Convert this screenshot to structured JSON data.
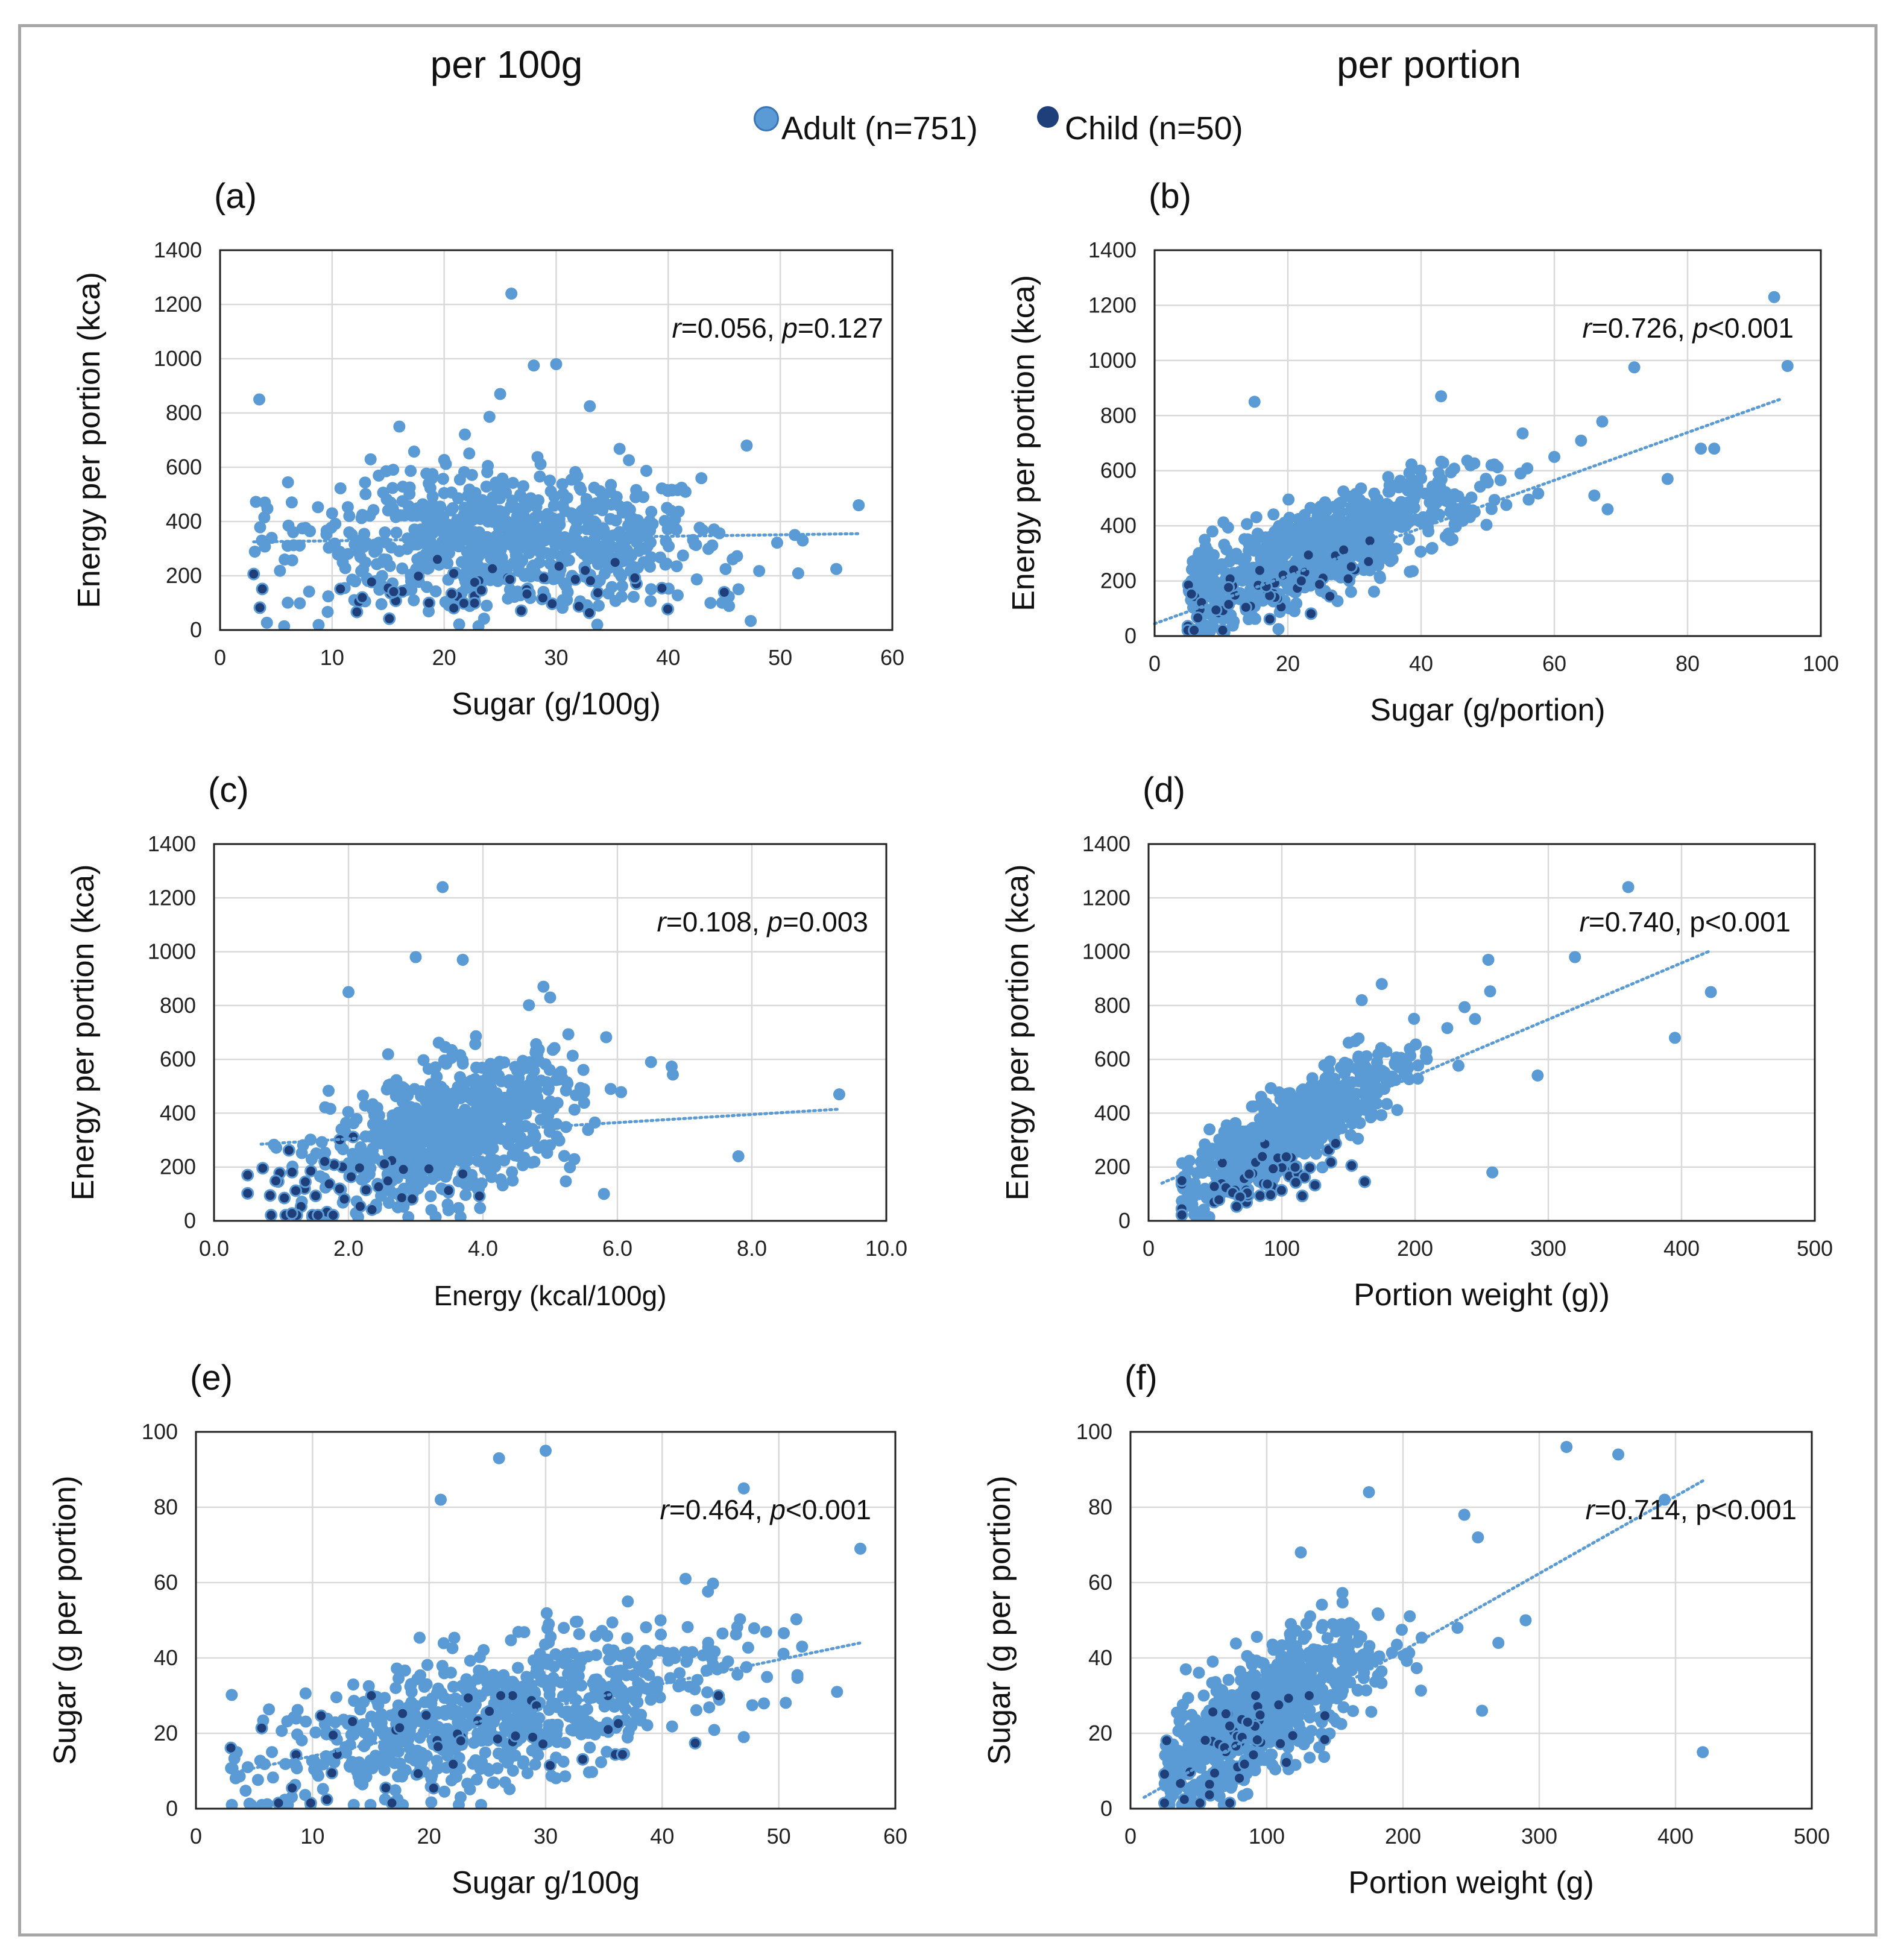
{
  "titles": {
    "left": "per 100g",
    "right": "per portion"
  },
  "legend": [
    {
      "label": "Adult (n=751)",
      "color": "#5b9bd5"
    },
    {
      "label": "Child (n=50)",
      "color": "#1f3f7a"
    }
  ],
  "chart_data": [
    {
      "id": "a",
      "panel_label": "(a)",
      "type": "scatter",
      "xlabel": "Sugar (g/100g)",
      "ylabel": "Energy per portion (kca)",
      "xlim": [
        0,
        60
      ],
      "ylim": [
        0,
        1400
      ],
      "xticks": [
        "0",
        "10",
        "20",
        "30",
        "40",
        "50",
        "60"
      ],
      "yticks": [
        "0",
        "200",
        "400",
        "600",
        "800",
        "1000",
        "1200",
        "1400"
      ],
      "annotation": {
        "r_label": "r",
        "r_value": "=0.056, ",
        "p_label": "p",
        "p_value": "=0.127"
      },
      "trendline": {
        "x": [
          3,
          57
        ],
        "y": [
          325,
          355
        ]
      },
      "adult_cloud": {
        "x_mean": 26,
        "x_sd": 9.5,
        "y_mean": 330,
        "y_sd": 120,
        "slope": 0.5,
        "n": 751
      },
      "adult_outliers": [
        [
          3.5,
          850
        ],
        [
          4,
          470
        ],
        [
          26,
          1240
        ],
        [
          28,
          975
        ],
        [
          30,
          980
        ],
        [
          25,
          870
        ],
        [
          33,
          825
        ],
        [
          47,
          680
        ],
        [
          57,
          460
        ],
        [
          55,
          225
        ],
        [
          52,
          330
        ],
        [
          16,
          750
        ]
      ],
      "child_cloud": {
        "x_mean": 22,
        "x_sd": 10,
        "y_mean": 120,
        "y_sd": 60,
        "slope": 0.5,
        "n": 50
      }
    },
    {
      "id": "b",
      "panel_label": "(b)",
      "type": "scatter",
      "xlabel": "Sugar (g/portion)",
      "ylabel": "Energy per portion (kca)",
      "xlim": [
        0,
        100
      ],
      "ylim": [
        0,
        1400
      ],
      "xticks": [
        "0",
        "20",
        "40",
        "60",
        "80",
        "100"
      ],
      "yticks": [
        "0",
        "200",
        "400",
        "600",
        "800",
        "1000",
        "1200",
        "1400"
      ],
      "annotation": {
        "r_label": "r",
        "r_value": "=0.726, ",
        "p_label": "p",
        "p_value": "<0.001"
      },
      "trendline": {
        "x": [
          0,
          94
        ],
        "y": [
          45,
          860
        ]
      },
      "adult_cloud": {
        "x_mean": 25,
        "x_sd": 12,
        "y_mean": 320,
        "y_sd": 80,
        "slope": 8.5,
        "n": 751
      },
      "adult_outliers": [
        [
          93,
          1230
        ],
        [
          95,
          980
        ],
        [
          72,
          975
        ],
        [
          15,
          850
        ],
        [
          84,
          680
        ],
        [
          82,
          680
        ],
        [
          77,
          570
        ],
        [
          68,
          460
        ],
        [
          66,
          510
        ],
        [
          60,
          650
        ],
        [
          43,
          870
        ]
      ],
      "child_cloud": {
        "x_mean": 14,
        "x_sd": 9,
        "y_mean": 130,
        "y_sd": 50,
        "slope": 8.5,
        "n": 50
      }
    },
    {
      "id": "c",
      "panel_label": "(c)",
      "type": "scatter",
      "xlabel": "Energy (kcal/100g)",
      "ylabel": "Energy per portion (kca)",
      "xlim": [
        0,
        10
      ],
      "ylim": [
        0,
        1400
      ],
      "xticks": [
        "0.0",
        "2.0",
        "4.0",
        "6.0",
        "8.0",
        "10.0"
      ],
      "yticks": [
        "0",
        "200",
        "400",
        "600",
        "800",
        "1000",
        "1200",
        "1400"
      ],
      "annotation": {
        "r_label": "r",
        "r_value": "=0.108, ",
        "p_label": "p",
        "p_value": "=0.003"
      },
      "trendline": {
        "x": [
          0.7,
          9.3
        ],
        "y": [
          285,
          415
        ]
      },
      "adult_cloud": {
        "x_mean": 3.6,
        "x_sd": 0.9,
        "y_mean": 340,
        "y_sd": 120,
        "slope": 60,
        "n": 751
      },
      "adult_outliers": [
        [
          3.4,
          1240
        ],
        [
          3.0,
          980
        ],
        [
          3.7,
          970
        ],
        [
          2.0,
          850
        ],
        [
          4.9,
          870
        ],
        [
          5.0,
          830
        ],
        [
          6.5,
          590
        ],
        [
          9.3,
          470
        ],
        [
          7.8,
          240
        ],
        [
          5.9,
          490
        ],
        [
          5.8,
          100
        ]
      ],
      "child_cloud": {
        "x_mean": 1.8,
        "x_sd": 0.9,
        "y_mean": 130,
        "y_sd": 70,
        "slope": 50,
        "n": 50
      }
    },
    {
      "id": "d",
      "panel_label": "(d)",
      "type": "scatter",
      "xlabel": "Portion weight (g))",
      "ylabel": "Energy per portion (kca)",
      "xlim": [
        0,
        500
      ],
      "ylim": [
        0,
        1400
      ],
      "xticks": [
        "0",
        "100",
        "200",
        "300",
        "400",
        "500"
      ],
      "yticks": [
        "0",
        "200",
        "400",
        "600",
        "800",
        "1000",
        "1200",
        "1400"
      ],
      "annotation": {
        "r_label": "r",
        "r_value": "=0.740, p<0.001",
        "p_label": "",
        "p_value": ""
      },
      "trendline": {
        "x": [
          10,
          420
        ],
        "y": [
          140,
          1000
        ]
      },
      "adult_cloud": {
        "x_mean": 105,
        "x_sd": 40,
        "y_mean": 340,
        "y_sd": 70,
        "slope": 2.8,
        "n": 751
      },
      "adult_outliers": [
        [
          360,
          1240
        ],
        [
          320,
          980
        ],
        [
          255,
          970
        ],
        [
          422,
          850
        ],
        [
          395,
          680
        ],
        [
          292,
          540
        ],
        [
          258,
          180
        ],
        [
          245,
          750
        ],
        [
          175,
          880
        ],
        [
          160,
          820
        ]
      ],
      "child_cloud": {
        "x_mean": 80,
        "x_sd": 35,
        "y_mean": 140,
        "y_sd": 60,
        "slope": 1.5,
        "n": 50
      }
    },
    {
      "id": "e",
      "panel_label": "(e)",
      "type": "scatter",
      "xlabel": "Sugar g/100g",
      "ylabel": "Sugar (g per portion)",
      "xlim": [
        0,
        60
      ],
      "ylim": [
        0,
        100
      ],
      "xticks": [
        "0",
        "10",
        "20",
        "30",
        "40",
        "50",
        "60"
      ],
      "yticks": [
        "0",
        "20",
        "40",
        "60",
        "80",
        "100"
      ],
      "annotation": {
        "r_label": "r",
        "r_value": "=0.464, ",
        "p_label": "p",
        "p_value": "<0.001"
      },
      "trendline": {
        "x": [
          3,
          57
        ],
        "y": [
          9.5,
          44
        ]
      },
      "adult_cloud": {
        "x_mean": 26,
        "x_sd": 9.5,
        "y_mean": 25,
        "y_sd": 9,
        "slope": 0.7,
        "n": 751
      },
      "adult_outliers": [
        [
          26,
          93
        ],
        [
          30,
          95
        ],
        [
          21,
          82
        ],
        [
          47,
          85
        ],
        [
          57,
          69
        ],
        [
          55,
          31
        ],
        [
          52,
          43
        ],
        [
          47,
          19
        ],
        [
          42,
          61
        ],
        [
          3.5,
          15
        ]
      ],
      "child_cloud": {
        "x_mean": 22,
        "x_sd": 9,
        "y_mean": 18,
        "y_sd": 7,
        "slope": 0.5,
        "n": 50
      }
    },
    {
      "id": "f",
      "panel_label": "(f)",
      "type": "scatter",
      "xlabel": "Portion weight (g)",
      "ylabel": "Sugar (g per portion)",
      "xlim": [
        0,
        500
      ],
      "ylim": [
        0,
        100
      ],
      "xticks": [
        "0",
        "100",
        "200",
        "300",
        "400",
        "500"
      ],
      "yticks": [
        "0",
        "20",
        "40",
        "60",
        "80",
        "100"
      ],
      "annotation": {
        "r_label": "r",
        "r_value": "=0.714, p<0.001",
        "p_label": "",
        "p_value": ""
      },
      "trendline": {
        "x": [
          10,
          420
        ],
        "y": [
          3,
          87
        ]
      },
      "adult_cloud": {
        "x_mean": 100,
        "x_sd": 40,
        "y_mean": 26,
        "y_sd": 8,
        "slope": 0.2,
        "n": 751
      },
      "adult_outliers": [
        [
          320,
          96
        ],
        [
          358,
          94
        ],
        [
          392,
          82
        ],
        [
          420,
          15
        ],
        [
          175,
          84
        ],
        [
          245,
          78
        ],
        [
          255,
          72
        ],
        [
          270,
          44
        ],
        [
          290,
          50
        ],
        [
          240,
          48
        ],
        [
          125,
          68
        ],
        [
          258,
          26
        ]
      ],
      "child_cloud": {
        "x_mean": 70,
        "x_sd": 25,
        "y_mean": 15,
        "y_sd": 6,
        "slope": 0.15,
        "n": 50
      }
    }
  ]
}
